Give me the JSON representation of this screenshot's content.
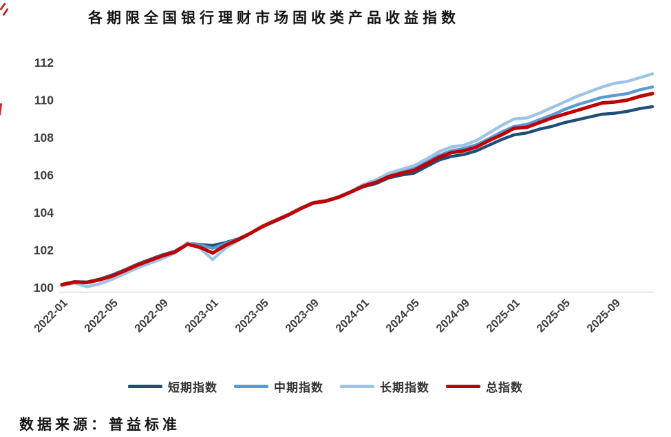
{
  "title": "各期限全国银行理财市场固收类产品收益指数",
  "source": "数据来源：普益标准",
  "chart_data": {
    "type": "line",
    "title": "各期限全国银行理财市场固收类产品收益指数",
    "xlabel": "",
    "ylabel": "",
    "ylim": [
      100,
      112
    ],
    "y_ticks": [
      100,
      102,
      104,
      106,
      108,
      110,
      112
    ],
    "grid": false,
    "legend_position": "bottom",
    "axis_label_color": "#3f3f3f",
    "axis_line_color": "#d9d9d9",
    "months": [
      "2022-01",
      "2022-02",
      "2022-03",
      "2022-04",
      "2022-05",
      "2022-06",
      "2022-07",
      "2022-08",
      "2022-09",
      "2022-10",
      "2022-11",
      "2022-12",
      "2023-01",
      "2023-02",
      "2023-03",
      "2023-04",
      "2023-05",
      "2023-06",
      "2023-07",
      "2023-08",
      "2023-09",
      "2023-10",
      "2023-11",
      "2023-12",
      "2024-01",
      "2024-02",
      "2024-03",
      "2024-04",
      "2024-05",
      "2024-06",
      "2024-07",
      "2024-08",
      "2024-09",
      "2024-10",
      "2024-11",
      "2024-12",
      "2025-01",
      "2025-02",
      "2025-03",
      "2025-04",
      "2025-05",
      "2025-06",
      "2025-07",
      "2025-08",
      "2025-09",
      "2025-10",
      "2025-11",
      "2025-12"
    ],
    "x_tick_labels": [
      "2022-01",
      "2022-05",
      "2022-09",
      "2023-01",
      "2023-05",
      "2023-09",
      "2024-01",
      "2024-05",
      "2024-09",
      "2025-01",
      "2025-05",
      "2025-09"
    ],
    "series": [
      {
        "name": "短期指数",
        "color": "#1F4E79",
        "stroke_width": 4.4,
        "values": [
          100.18,
          100.32,
          100.3,
          100.45,
          100.68,
          100.95,
          101.25,
          101.5,
          101.75,
          101.95,
          102.35,
          102.3,
          102.25,
          102.4,
          102.6,
          102.9,
          103.25,
          103.55,
          103.85,
          104.2,
          104.5,
          104.6,
          104.8,
          105.1,
          105.38,
          105.55,
          105.85,
          106.0,
          106.1,
          106.45,
          106.8,
          107.0,
          107.1,
          107.3,
          107.6,
          107.9,
          108.15,
          108.25,
          108.45,
          108.6,
          108.8,
          108.95,
          109.1,
          109.25,
          109.3,
          109.4,
          109.55,
          109.65
        ]
      },
      {
        "name": "中期指数",
        "color": "#5B9BD5",
        "stroke_width": 4.4,
        "values": [
          100.16,
          100.3,
          100.28,
          100.42,
          100.65,
          100.92,
          101.22,
          101.47,
          101.72,
          101.93,
          102.33,
          102.28,
          102.1,
          102.35,
          102.58,
          102.9,
          103.27,
          103.58,
          103.88,
          104.22,
          104.52,
          104.62,
          104.82,
          105.12,
          105.45,
          105.68,
          105.95,
          106.2,
          106.35,
          106.7,
          107.05,
          107.3,
          107.42,
          107.62,
          107.95,
          108.3,
          108.6,
          108.7,
          108.95,
          109.2,
          109.5,
          109.75,
          109.95,
          110.15,
          110.25,
          110.35,
          110.55,
          110.7
        ]
      },
      {
        "name": "长期指数",
        "color": "#9DC3E6",
        "stroke_width": 4.4,
        "values": [
          100.12,
          100.25,
          100.05,
          100.2,
          100.45,
          100.75,
          101.05,
          101.3,
          101.55,
          101.85,
          102.4,
          102.1,
          101.5,
          102.1,
          102.5,
          102.88,
          103.3,
          103.6,
          103.9,
          104.25,
          104.55,
          104.65,
          104.85,
          105.15,
          105.5,
          105.75,
          106.1,
          106.3,
          106.5,
          106.85,
          107.25,
          107.5,
          107.6,
          107.85,
          108.25,
          108.65,
          109.0,
          109.05,
          109.3,
          109.6,
          109.9,
          110.2,
          110.45,
          110.7,
          110.9,
          111.0,
          111.2,
          111.4
        ]
      },
      {
        "name": "总指数",
        "color": "#C00000",
        "stroke_width": 5.0,
        "values": [
          100.15,
          100.3,
          100.27,
          100.42,
          100.62,
          100.9,
          101.2,
          101.45,
          101.7,
          101.9,
          102.32,
          102.15,
          101.85,
          102.25,
          102.55,
          102.9,
          103.28,
          103.58,
          103.88,
          104.22,
          104.52,
          104.62,
          104.82,
          105.1,
          105.42,
          105.62,
          105.92,
          106.1,
          106.25,
          106.6,
          106.95,
          107.2,
          107.3,
          107.5,
          107.85,
          108.15,
          108.5,
          108.55,
          108.8,
          109.05,
          109.25,
          109.45,
          109.65,
          109.85,
          109.9,
          110.0,
          110.2,
          110.35
        ]
      }
    ]
  }
}
